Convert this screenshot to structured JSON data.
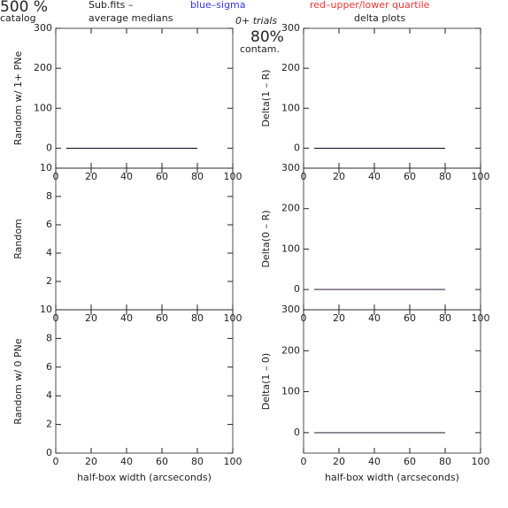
{
  "header": {
    "percent": "500 %",
    "catalog": "catalog",
    "file": "Sub.fits  –",
    "medians": "average medians",
    "blue_note": "blue–sigma",
    "red_note": "red–upper/lower quartile",
    "trials": "0+ trials",
    "contam_value": "80%",
    "contam": "contam.",
    "delta": "delta plots"
  },
  "chart_data": [
    {
      "type": "line",
      "ylabel": "Random w/ 1+ PNe",
      "xlim": [
        0,
        100
      ],
      "xticks": [
        0,
        20,
        40,
        60,
        80,
        100
      ],
      "ylim": [
        -50,
        300
      ],
      "yticks": [
        0,
        100,
        200,
        300
      ],
      "x": [
        6,
        8,
        10,
        12,
        14,
        16,
        18,
        20,
        22,
        36,
        50,
        65,
        80
      ],
      "series": [
        {
          "color": "#ee3333",
          "values": [
            0,
            0,
            0,
            0,
            0,
            0,
            0,
            0,
            0,
            0,
            0,
            0,
            0
          ]
        },
        {
          "color": "#3333ee",
          "values": [
            0,
            0,
            0,
            0,
            0,
            0,
            0,
            0,
            0,
            0,
            0,
            0,
            0
          ]
        },
        {
          "color": "#000000",
          "values": [
            0,
            0,
            0,
            0,
            0,
            0,
            0,
            0,
            0,
            0,
            0,
            0,
            0
          ]
        }
      ]
    },
    {
      "type": "line",
      "ylabel": "Delta(1 – R)",
      "xlim": [
        0,
        100
      ],
      "xticks": [
        0,
        20,
        40,
        60,
        80,
        100
      ],
      "ylim": [
        -50,
        300
      ],
      "yticks": [
        0,
        100,
        200,
        300
      ],
      "x": [
        6,
        8,
        10,
        12,
        14,
        16,
        18,
        20,
        22,
        36,
        50,
        65,
        80
      ],
      "series": [
        {
          "color": "#ee3333",
          "values": [
            0,
            0,
            0,
            0,
            0,
            0,
            0,
            0,
            0,
            0,
            0,
            0,
            0
          ]
        },
        {
          "color": "#3333ee",
          "values": [
            0,
            0,
            0,
            0,
            0,
            0,
            0,
            0,
            0,
            0,
            0,
            0,
            0
          ]
        },
        {
          "color": "#000000",
          "values": [
            0,
            0,
            0,
            0,
            0,
            0,
            0,
            0,
            0,
            0,
            0,
            0,
            0
          ]
        }
      ]
    },
    {
      "type": "line",
      "ylabel": "Random",
      "xlim": [
        0,
        100
      ],
      "xticks": [
        0,
        20,
        40,
        60,
        80,
        100
      ],
      "ylim": [
        0,
        10
      ],
      "yticks": [
        2,
        4,
        6,
        8,
        10
      ],
      "x": [],
      "series": []
    },
    {
      "type": "line",
      "ylabel": "Delta(0 – R)",
      "xlim": [
        0,
        100
      ],
      "xticks": [
        0,
        20,
        40,
        60,
        80,
        100
      ],
      "ylim": [
        -50,
        300
      ],
      "yticks": [
        0,
        100,
        200,
        300
      ],
      "x": [
        6,
        8,
        10,
        12,
        14,
        16,
        18,
        20,
        22,
        36,
        50,
        65,
        80
      ],
      "series": [
        {
          "color": "#ee3333",
          "values": [
            0,
            0,
            0,
            0,
            0,
            0,
            0,
            0,
            0,
            0,
            0,
            0,
            0
          ]
        },
        {
          "color": "#3333ee",
          "values": [
            0,
            0,
            0,
            0,
            0,
            0,
            0,
            0,
            0,
            0,
            0,
            0,
            0
          ]
        },
        {
          "color": "#000000",
          "values": [
            0,
            0,
            0,
            0,
            0,
            0,
            0,
            0,
            0,
            0,
            0,
            0,
            0
          ]
        }
      ]
    },
    {
      "type": "line",
      "ylabel": "Random w/ 0 PNe",
      "xlabel": "half-box width (arcseconds)",
      "xlim": [
        0,
        100
      ],
      "xticks": [
        0,
        20,
        40,
        60,
        80,
        100
      ],
      "ylim": [
        0,
        10
      ],
      "yticks": [
        0,
        2,
        4,
        6,
        8,
        10
      ],
      "x": [],
      "series": []
    },
    {
      "type": "line",
      "ylabel": "Delta(1 – 0)",
      "xlabel": "half-box width (arcseconds)",
      "xlim": [
        0,
        100
      ],
      "xticks": [
        0,
        20,
        40,
        60,
        80,
        100
      ],
      "ylim": [
        -50,
        300
      ],
      "yticks": [
        0,
        100,
        200,
        300
      ],
      "x": [
        6,
        8,
        10,
        12,
        14,
        16,
        18,
        20,
        22,
        36,
        50,
        65,
        80
      ],
      "series": [
        {
          "color": "#ee3333",
          "values": [
            0,
            0,
            0,
            0,
            0,
            0,
            0,
            0,
            0,
            0,
            0,
            0,
            0
          ]
        },
        {
          "color": "#3333ee",
          "values": [
            0,
            0,
            0,
            0,
            0,
            0,
            0,
            0,
            0,
            0,
            0,
            0,
            0
          ]
        },
        {
          "color": "#000000",
          "values": [
            0,
            0,
            0,
            0,
            0,
            0,
            0,
            0,
            0,
            0,
            0,
            0,
            0
          ]
        }
      ]
    }
  ]
}
